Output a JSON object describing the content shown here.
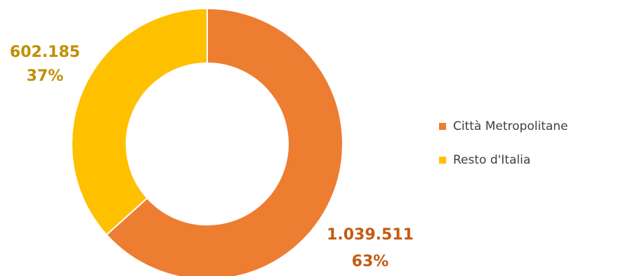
{
  "chart_data": {
    "type": "pie",
    "donut": true,
    "slices": [
      {
        "label": "Città Metropolitane",
        "value": 1039511,
        "value_text": "1.039.511",
        "percent_text": "63%",
        "color": "#ED7D31",
        "label_color": "#C55A11"
      },
      {
        "label": "Resto d'Italia",
        "value": 602185,
        "value_text": "602.185",
        "percent_text": "37%",
        "color": "#FFC000",
        "label_color": "#BF9000"
      }
    ],
    "legend": {
      "placement": "right",
      "items": [
        "Città Metropolitane",
        "Resto d'Italia"
      ]
    }
  }
}
